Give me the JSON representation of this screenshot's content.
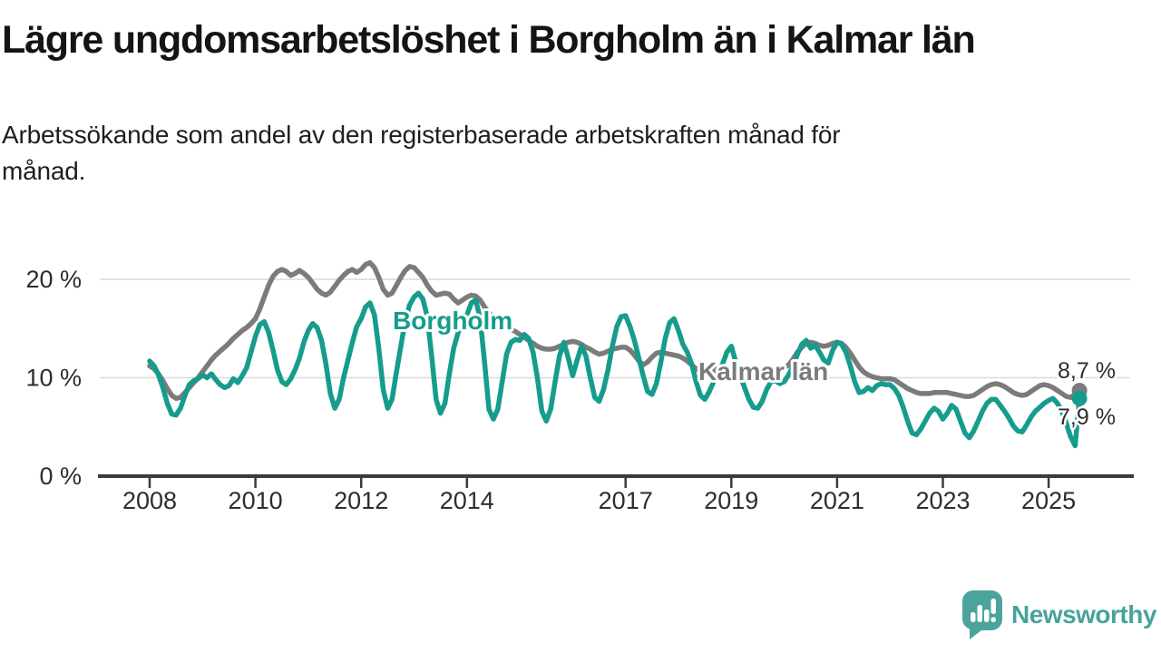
{
  "header": {
    "title": "Lägre ungdomsarbetslöshet i Borgholm än i Kalmar län",
    "subtitle_line1": "Arbetssökande som andel av den registerbaserade arbetskraften månad för",
    "subtitle_line2": "månad."
  },
  "footer": {
    "brand": "Newsworthy",
    "logo_color": "#4ba49c"
  },
  "chart_data": {
    "type": "line",
    "unit": "%",
    "x_start": "2008-01",
    "x_end": "2025-08",
    "points_per_year": 12,
    "grid": "horizontal",
    "ylim": [
      0,
      23
    ],
    "y_axis": {
      "ticks": [
        {
          "v": 0,
          "label": "0 %"
        },
        {
          "v": 10,
          "label": "10 %"
        },
        {
          "v": 20,
          "label": "20 %"
        }
      ]
    },
    "x_axis": {
      "ticks": [
        {
          "year": 2008,
          "label": "2008"
        },
        {
          "year": 2010,
          "label": "2010"
        },
        {
          "year": 2012,
          "label": "2012"
        },
        {
          "year": 2014,
          "label": "2014"
        },
        {
          "year": 2017,
          "label": "2017"
        },
        {
          "year": 2019,
          "label": "2019"
        },
        {
          "year": 2021,
          "label": "2021"
        },
        {
          "year": 2023,
          "label": "2023"
        },
        {
          "year": 2025,
          "label": "2025"
        }
      ]
    },
    "series": [
      {
        "id": "kalmar",
        "name": "Kalmar län",
        "color": "#7b7b7b",
        "end_value": 8.7,
        "end_label": "8,7 %",
        "values": [
          11.2,
          10.9,
          10.4,
          9.7,
          8.9,
          8.2,
          7.9,
          8.0,
          8.5,
          9.0,
          9.5,
          10.0,
          10.6,
          11.2,
          11.8,
          12.3,
          12.7,
          13.1,
          13.5,
          14.0,
          14.4,
          14.8,
          15.1,
          15.5,
          16.0,
          17.0,
          18.2,
          19.4,
          20.3,
          20.8,
          21.0,
          20.8,
          20.4,
          20.6,
          20.9,
          20.6,
          20.2,
          19.6,
          19.0,
          18.6,
          18.4,
          18.7,
          19.3,
          19.9,
          20.4,
          20.8,
          21.0,
          20.7,
          21.0,
          21.5,
          21.7,
          21.2,
          20.2,
          19.0,
          18.4,
          18.6,
          19.4,
          20.2,
          20.9,
          21.3,
          21.2,
          20.7,
          20.2,
          19.4,
          18.8,
          18.4,
          18.5,
          18.6,
          18.5,
          18.0,
          17.6,
          17.9,
          18.2,
          18.4,
          18.3,
          17.9,
          17.2,
          16.6,
          16.1,
          15.7,
          15.4,
          15.1,
          14.9,
          14.7,
          14.4,
          14.1,
          13.8,
          13.5,
          13.2,
          13.0,
          12.9,
          12.9,
          13.0,
          13.2,
          13.4,
          13.6,
          13.7,
          13.6,
          13.4,
          13.1,
          12.9,
          12.6,
          12.4,
          12.5,
          12.7,
          12.9,
          13.0,
          13.1,
          13.1,
          12.8,
          12.3,
          11.7,
          11.3,
          11.6,
          12.1,
          12.5,
          12.6,
          12.5,
          12.4,
          12.3,
          12.2,
          12.0,
          11.7,
          11.3,
          10.9,
          10.7,
          10.6,
          10.7,
          10.8,
          10.9,
          10.9,
          10.8,
          10.8,
          10.7,
          10.5,
          10.3,
          10.2,
          10.1,
          10.1,
          10.2,
          10.4,
          10.5,
          10.7,
          10.8,
          11.0,
          11.3,
          11.9,
          12.6,
          13.1,
          13.5,
          13.6,
          13.5,
          13.3,
          13.2,
          13.3,
          13.5,
          13.6,
          13.5,
          13.1,
          12.5,
          11.8,
          11.1,
          10.6,
          10.3,
          10.1,
          10.0,
          9.9,
          9.9,
          9.9,
          9.8,
          9.5,
          9.2,
          8.9,
          8.7,
          8.5,
          8.4,
          8.4,
          8.4,
          8.5,
          8.5,
          8.5,
          8.5,
          8.4,
          8.3,
          8.2,
          8.1,
          8.1,
          8.2,
          8.5,
          8.8,
          9.1,
          9.3,
          9.4,
          9.3,
          9.1,
          8.8,
          8.5,
          8.3,
          8.2,
          8.3,
          8.6,
          8.9,
          9.2,
          9.3,
          9.2,
          9.0,
          8.7,
          8.4,
          8.1,
          8.0,
          8.3,
          8.7
        ]
      },
      {
        "id": "borgholm",
        "name": "Borgholm",
        "color": "#169c8d",
        "end_value": 7.9,
        "end_label": "7,9 %",
        "values": [
          11.7,
          11.2,
          10.3,
          9.0,
          7.4,
          6.3,
          6.2,
          6.9,
          8.2,
          9.3,
          9.7,
          9.9,
          10.3,
          10.0,
          10.4,
          9.8,
          9.3,
          9.0,
          9.2,
          9.9,
          9.5,
          10.2,
          11.0,
          12.6,
          14.2,
          15.4,
          15.7,
          14.6,
          12.8,
          10.8,
          9.6,
          9.3,
          9.9,
          10.8,
          12.0,
          13.6,
          14.8,
          15.5,
          15.1,
          13.8,
          11.4,
          8.4,
          6.9,
          7.8,
          10.0,
          11.8,
          13.6,
          15.2,
          16.0,
          17.2,
          17.6,
          16.4,
          13.0,
          8.8,
          6.9,
          7.8,
          10.6,
          13.2,
          15.8,
          17.4,
          18.2,
          18.6,
          18.0,
          16.2,
          12.2,
          7.8,
          6.4,
          7.4,
          10.4,
          13.0,
          14.6,
          15.4,
          16.4,
          17.6,
          17.9,
          16.0,
          11.6,
          6.8,
          5.8,
          6.8,
          9.6,
          12.4,
          13.6,
          13.9,
          13.8,
          14.4,
          14.0,
          12.6,
          10.0,
          6.6,
          5.6,
          6.8,
          9.6,
          12.2,
          13.6,
          12.0,
          10.2,
          11.8,
          13.2,
          12.2,
          10.0,
          8.0,
          7.6,
          8.8,
          10.8,
          13.2,
          15.2,
          16.2,
          16.3,
          15.2,
          13.8,
          12.0,
          10.2,
          8.6,
          8.3,
          9.4,
          11.6,
          14.0,
          15.6,
          16.0,
          14.8,
          13.4,
          12.6,
          11.4,
          9.6,
          8.2,
          7.8,
          8.6,
          9.6,
          10.6,
          11.4,
          12.6,
          13.2,
          11.6,
          10.2,
          9.0,
          7.8,
          7.0,
          6.9,
          7.6,
          8.8,
          9.6,
          9.7,
          9.4,
          9.6,
          10.3,
          11.2,
          12.4,
          13.4,
          13.8,
          13.0,
          13.3,
          12.6,
          11.8,
          11.5,
          12.8,
          13.6,
          13.4,
          12.6,
          11.2,
          9.6,
          8.5,
          8.6,
          9.0,
          8.7,
          9.2,
          9.4,
          9.3,
          9.3,
          8.9,
          8.2,
          7.0,
          5.6,
          4.4,
          4.2,
          4.8,
          5.6,
          6.4,
          6.9,
          6.6,
          5.8,
          6.4,
          7.2,
          6.8,
          5.6,
          4.4,
          3.9,
          4.6,
          5.6,
          6.6,
          7.4,
          7.8,
          7.8,
          7.2,
          6.6,
          5.9,
          5.1,
          4.6,
          4.5,
          5.2,
          6.0,
          6.6,
          7.0,
          7.4,
          7.7,
          7.9,
          7.4,
          6.6,
          5.4,
          4.0,
          3.1,
          7.9
        ]
      }
    ]
  }
}
